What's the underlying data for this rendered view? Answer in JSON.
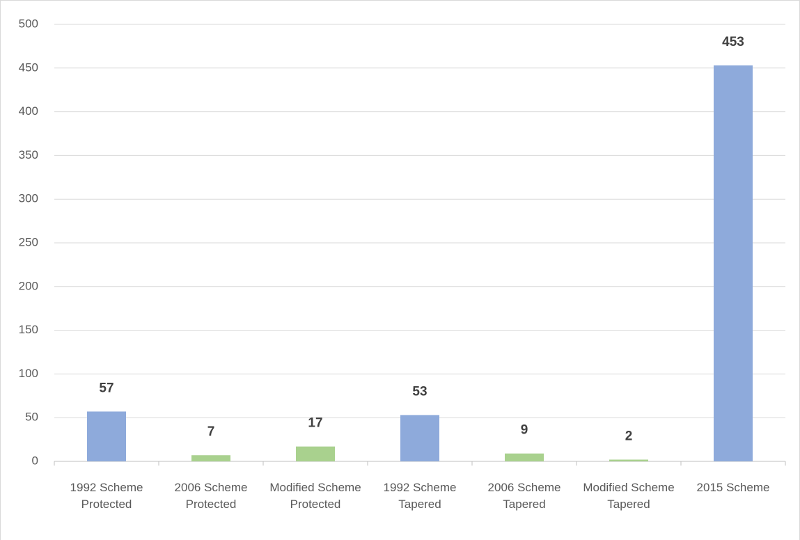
{
  "chart_data": {
    "type": "bar",
    "categories": [
      "1992 Scheme Protected",
      "2006 Scheme Protected",
      "Modified Scheme Protected",
      "1992 Scheme Tapered",
      "2006 Scheme Tapered",
      "Modified Scheme Tapered",
      "2015 Scheme"
    ],
    "values": [
      57,
      7,
      17,
      53,
      9,
      2,
      453
    ],
    "colors": [
      "#8eaadb",
      "#a9d18e",
      "#a9d18e",
      "#8eaadb",
      "#a9d18e",
      "#a9d18e",
      "#8eaadb"
    ],
    "ylim": [
      0,
      500
    ],
    "yticks": [
      0,
      50,
      100,
      150,
      200,
      250,
      300,
      350,
      400,
      450,
      500
    ],
    "grid": true
  }
}
